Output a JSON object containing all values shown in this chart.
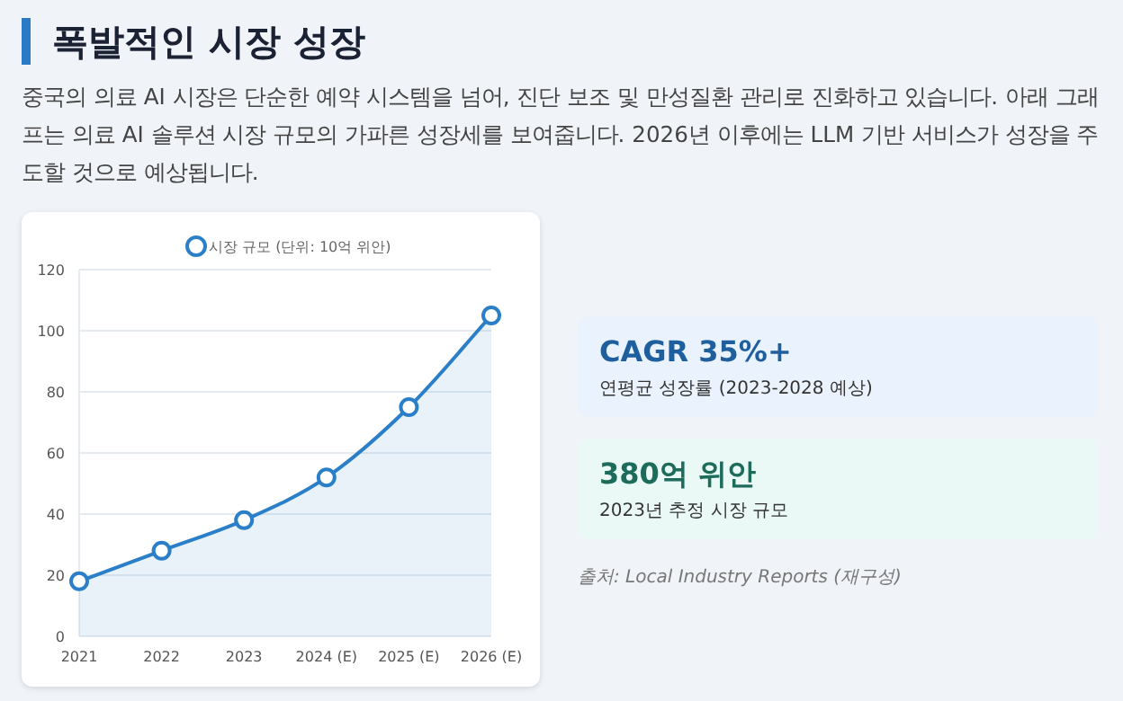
{
  "chart_data": [
    {
      "type": "area",
      "title": "폭발적인 시장 성장",
      "subtitle": "중국의 의료 AI 시장은 단순한 예약 시스템을 넘어, 진단 보조 및 만성질환 관리로 진화하고 있습니다. 아래 그래프는 의료 AI 솔루션 시장 규모의 가파른 성장세를 보여줍니다. 2026년 이후에는 LLM 기반 서비스가 성장을 주도할 것으로 예상됩니다.",
      "categories": [
        "2021",
        "2022",
        "2023",
        "2024 (E)",
        "2025 (E)",
        "2026 (E)"
      ],
      "series": [
        {
          "name": "시장 규모 (단위: 10억 위안)",
          "color": "#2a7fc8",
          "values": [
            18,
            28,
            38,
            52,
            75,
            105
          ]
        }
      ],
      "ylim": [
        0,
        120
      ],
      "yticks": [
        0,
        20,
        40,
        60,
        80,
        100,
        120
      ],
      "grid": "y",
      "legend": "top",
      "marker": "circle",
      "line_style": "solid"
    },
    {
      "type": "other",
      "title": "CAGR 35%+",
      "subtitle": "연평균 성장률 (2023-2028 예상)"
    },
    {
      "type": "other",
      "title": "380억 위안",
      "subtitle": "2023년 추정 시장 규모",
      "annotations": [
        "출처: Local Industry Reports (재구성)"
      ]
    }
  ]
}
